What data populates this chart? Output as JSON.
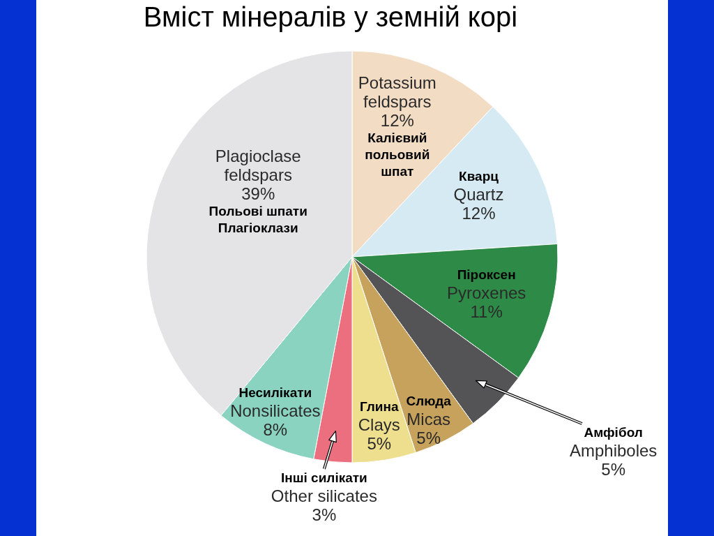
{
  "chart_data": {
    "type": "pie",
    "title": "Вміст мінералів у земній корі",
    "categories": [
      "Potassium feldspars",
      "Quartz",
      "Pyroxenes",
      "Amphiboles",
      "Micas",
      "Clays",
      "Other silicates",
      "Nonsilicates",
      "Plagioclase feldspars"
    ],
    "values": [
      12,
      12,
      11,
      5,
      5,
      5,
      3,
      8,
      39
    ],
    "value_labels": [
      "12%",
      "12%",
      "11%",
      "5%",
      "5%",
      "5%",
      "3%",
      "8%",
      "39%"
    ],
    "colors": [
      "#f3dcc4",
      "#d6eaf3",
      "#2e8b47",
      "#545456",
      "#c6a25c",
      "#eedf8e",
      "#ec6f80",
      "#8ad3c0",
      "#e4e4e6"
    ],
    "annotations": [
      "Калієвий польовий шпат",
      "Кварц",
      "Піроксен",
      "Амфібол",
      "Слюда",
      "Глина",
      "Інші силікати",
      "Несилікати",
      "Польові шпати Плагіоклази"
    ]
  }
}
